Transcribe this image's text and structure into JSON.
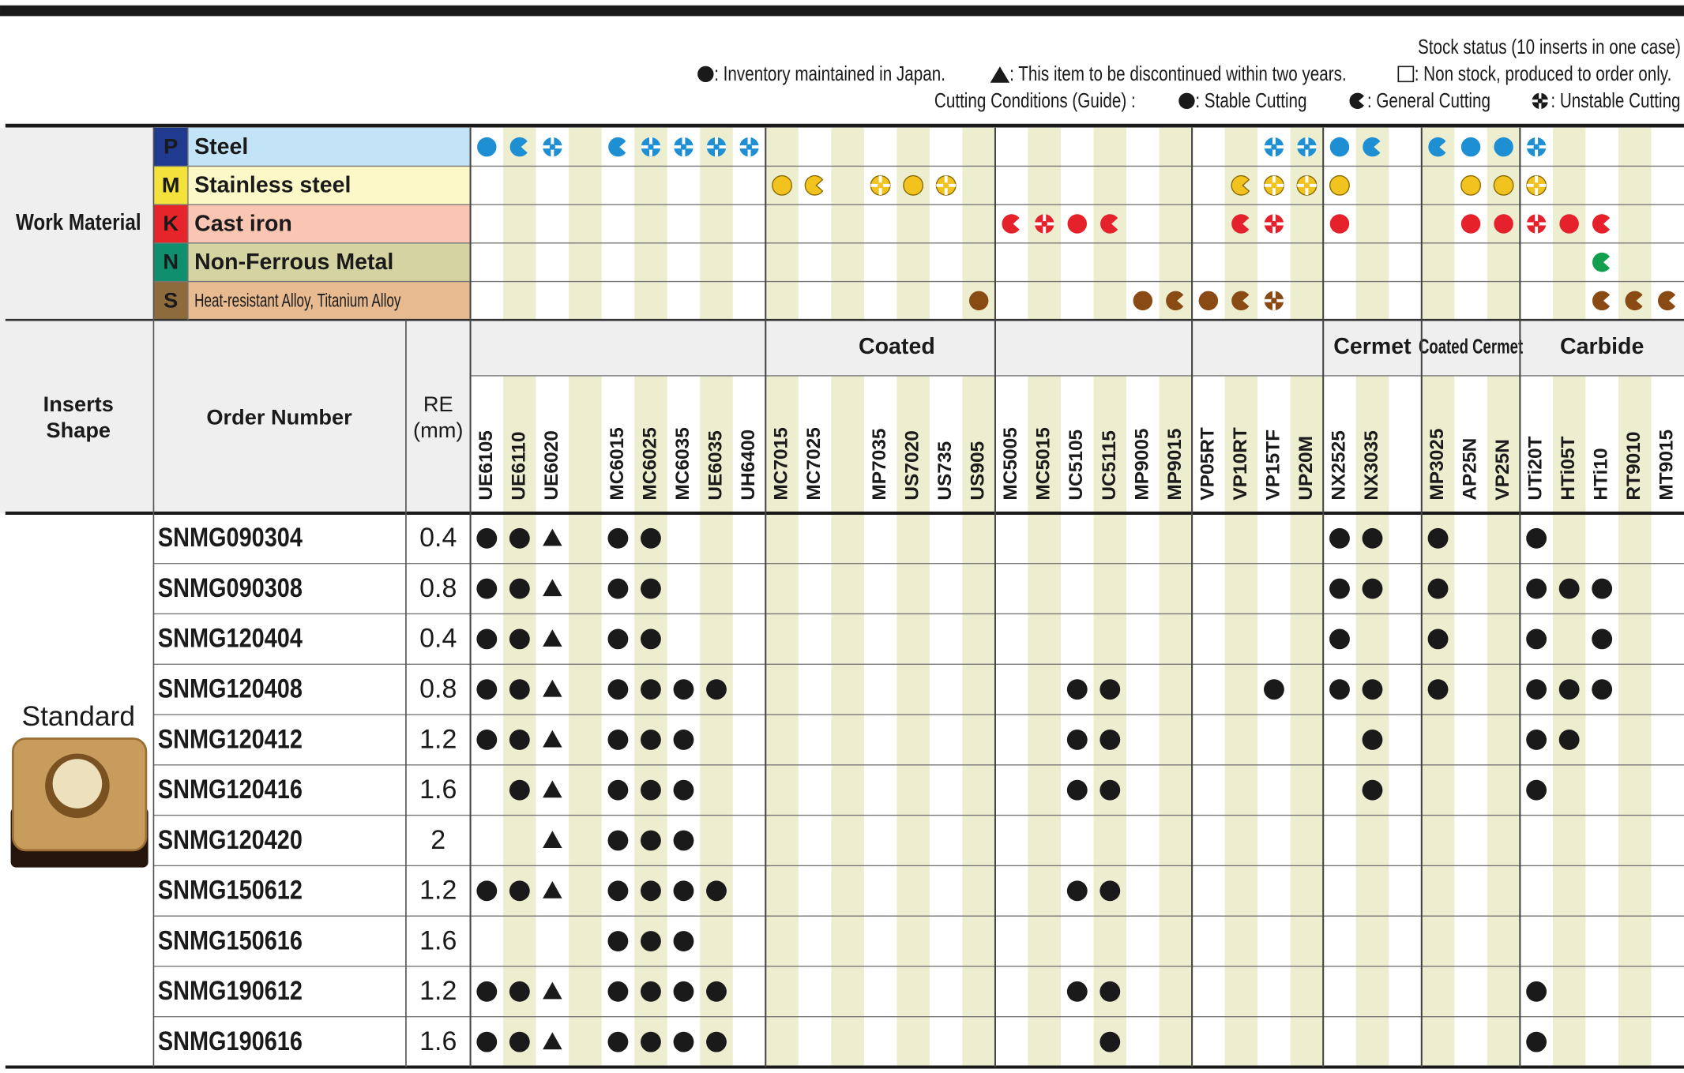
{
  "legend": {
    "stock_title": "Stock status (10 inserts in one case)",
    "inventory": ": Inventory maintained in Japan.",
    "discontinued": ": This item to be discontinued within two years.",
    "non_stock": ": Non stock, produced to order only.",
    "conditions_title": "Cutting Conditions (Guide) :",
    "stable": ": Stable Cutting",
    "general": ": General Cutting",
    "unstable": ": Unstable Cutting"
  },
  "work_material_label": "Work Material",
  "materials": [
    {
      "letter": "P",
      "name": "Steel",
      "letter_bg": "#1f3a8f",
      "letter_color": "#ffffff",
      "bg": "#c2e4f6",
      "symbol_color": "#1e8fd2",
      "marks": {
        "0": "stable",
        "1": "general",
        "2": "unstable",
        "4": "general",
        "5": "unstable",
        "6": "unstable",
        "7": "unstable",
        "8": "unstable",
        "24": "unstable",
        "25": "unstable",
        "26": "stable",
        "27": "general",
        "29": "general",
        "30": "stable",
        "31": "stable",
        "32": "unstable"
      }
    },
    {
      "letter": "M",
      "name": "Stainless steel",
      "letter_bg": "#f3e23c",
      "letter_color": "#1a1a1a",
      "bg": "#fdf8c8",
      "symbol_color": "#f2c21e",
      "marks": {
        "9": "stable",
        "10": "general",
        "12": "unstable",
        "13": "stable",
        "14": "unstable",
        "23": "general",
        "24": "unstable",
        "25": "unstable",
        "26": "stable",
        "30": "stable",
        "31": "stable",
        "32": "unstable"
      }
    },
    {
      "letter": "K",
      "name": "Cast iron",
      "letter_bg": "#e52529",
      "letter_color": "#ffffff",
      "bg": "#fbc5b4",
      "symbol_color": "#e5222b",
      "marks": {
        "16": "general",
        "17": "unstable",
        "18": "stable",
        "19": "general",
        "23": "general",
        "24": "unstable",
        "26": "stable",
        "30": "stable",
        "31": "stable",
        "32": "unstable",
        "33": "stable",
        "34": "general"
      }
    },
    {
      "letter": "N",
      "name": "Non-Ferrous Metal",
      "letter_bg": "#0f8f6e",
      "letter_color": "#ffffff",
      "bg": "#d5d3a2",
      "symbol_color": "#12a04e",
      "marks": {
        "34": "general"
      }
    },
    {
      "letter": "S",
      "name": "Heat-resistant Alloy, Titanium Alloy",
      "letter_bg": "#8e6b3d",
      "letter_color": "#ffffff",
      "bg": "#e7ba8f",
      "symbol_color": "#8a4a14",
      "marks": {
        "15": "stable",
        "20": "stable",
        "21": "general",
        "22": "stable",
        "23": "general",
        "24": "unstable",
        "34": "general",
        "35": "general",
        "36": "general"
      }
    }
  ],
  "headers": {
    "shape": [
      "Inserts",
      "Shape"
    ],
    "order_number": "Order Number",
    "re": [
      "RE",
      "(mm)"
    ]
  },
  "groups": [
    {
      "name": "Coated",
      "sections": [
        [
          "UE6105",
          "UE6110",
          "UE6020",
          null,
          "MC6015",
          "MC6025",
          "MC6035",
          "UE6035",
          "UH6400"
        ],
        [
          "MC7015",
          "MC7025",
          null,
          "MP7035",
          "US7020",
          "US735",
          "US905"
        ],
        [
          "MC5005",
          "MC5015",
          "UC5105",
          "UC5115",
          "MP9005",
          "MP9015"
        ],
        [
          "VP05RT",
          "VP10RT",
          "VP15TF",
          "UP20M"
        ]
      ]
    },
    {
      "name": "Cermet",
      "sections": [
        [
          "NX2525",
          "NX3035",
          null
        ]
      ]
    },
    {
      "name": "Coated Cermet",
      "sections": [
        [
          "MP3025",
          "AP25N",
          "VP25N"
        ]
      ]
    },
    {
      "name": "Carbide",
      "sections": [
        [
          "UTi20T",
          "HTi05T",
          "HTi10",
          "RT9010",
          "MT9015"
        ]
      ]
    }
  ],
  "shape_label": "Standard",
  "rows": [
    {
      "order": "SNMG090304",
      "re": 0.4,
      "stock": {
        "0": "inventory",
        "1": "inventory",
        "2": "discontinued",
        "4": "inventory",
        "5": "inventory",
        "26": "inventory",
        "27": "inventory",
        "29": "inventory",
        "32": "inventory"
      }
    },
    {
      "order": "SNMG090308",
      "re": 0.8,
      "stock": {
        "0": "inventory",
        "1": "inventory",
        "2": "discontinued",
        "4": "inventory",
        "5": "inventory",
        "26": "inventory",
        "27": "inventory",
        "29": "inventory",
        "32": "inventory",
        "33": "inventory",
        "34": "inventory"
      }
    },
    {
      "order": "SNMG120404",
      "re": 0.4,
      "stock": {
        "0": "inventory",
        "1": "inventory",
        "2": "discontinued",
        "4": "inventory",
        "5": "inventory",
        "26": "inventory",
        "29": "inventory",
        "32": "inventory",
        "34": "inventory"
      }
    },
    {
      "order": "SNMG120408",
      "re": 0.8,
      "stock": {
        "0": "inventory",
        "1": "inventory",
        "2": "discontinued",
        "4": "inventory",
        "5": "inventory",
        "6": "inventory",
        "7": "inventory",
        "18": "inventory",
        "19": "inventory",
        "24": "inventory",
        "26": "inventory",
        "27": "inventory",
        "29": "inventory",
        "32": "inventory",
        "33": "inventory",
        "34": "inventory"
      }
    },
    {
      "order": "SNMG120412",
      "re": 1.2,
      "stock": {
        "0": "inventory",
        "1": "inventory",
        "2": "discontinued",
        "4": "inventory",
        "5": "inventory",
        "6": "inventory",
        "18": "inventory",
        "19": "inventory",
        "27": "inventory",
        "32": "inventory",
        "33": "inventory"
      }
    },
    {
      "order": "SNMG120416",
      "re": 1.6,
      "stock": {
        "1": "inventory",
        "2": "discontinued",
        "4": "inventory",
        "5": "inventory",
        "6": "inventory",
        "18": "inventory",
        "19": "inventory",
        "27": "inventory",
        "32": "inventory"
      }
    },
    {
      "order": "SNMG120420",
      "re": 2,
      "stock": {
        "2": "discontinued",
        "4": "inventory",
        "5": "inventory",
        "6": "inventory"
      }
    },
    {
      "order": "SNMG150612",
      "re": 1.2,
      "stock": {
        "0": "inventory",
        "1": "inventory",
        "2": "discontinued",
        "4": "inventory",
        "5": "inventory",
        "6": "inventory",
        "7": "inventory",
        "18": "inventory",
        "19": "inventory"
      }
    },
    {
      "order": "SNMG150616",
      "re": 1.6,
      "stock": {
        "4": "inventory",
        "5": "inventory",
        "6": "inventory"
      }
    },
    {
      "order": "SNMG190612",
      "re": 1.2,
      "stock": {
        "0": "inventory",
        "1": "inventory",
        "2": "discontinued",
        "4": "inventory",
        "5": "inventory",
        "6": "inventory",
        "7": "inventory",
        "18": "inventory",
        "19": "inventory",
        "32": "inventory"
      }
    },
    {
      "order": "SNMG190616",
      "re": 1.6,
      "stock": {
        "0": "inventory",
        "1": "inventory",
        "2": "discontinued",
        "4": "inventory",
        "5": "inventory",
        "6": "inventory",
        "7": "inventory",
        "19": "inventory",
        "32": "inventory"
      }
    }
  ]
}
